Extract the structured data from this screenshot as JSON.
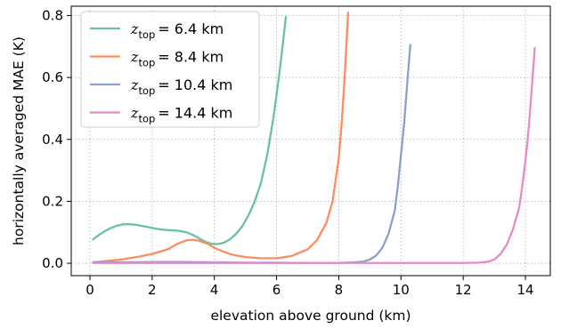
{
  "chart_data": {
    "type": "line",
    "xlabel": "elevation above ground (km)",
    "ylabel": "horizontally averaged MAE (K)",
    "xlim": [
      -0.6,
      14.8
    ],
    "ylim": [
      -0.04,
      0.83
    ],
    "xticks": [
      0,
      2,
      4,
      6,
      8,
      10,
      12,
      14
    ],
    "yticks": [
      0.0,
      0.2,
      0.4,
      0.6,
      0.8
    ],
    "xtick_labels": [
      "0",
      "2",
      "4",
      "6",
      "8",
      "10",
      "12",
      "14"
    ],
    "ytick_labels": [
      "0.0",
      "0.2",
      "0.4",
      "0.6",
      "0.8"
    ],
    "grid": true,
    "legend_position": "upper-left",
    "series": [
      {
        "name": "z_top = 6.4 km",
        "legend_sub": "top",
        "legend_value": "= 6.4 km",
        "color": "#66c2a5",
        "x": [
          0.1,
          0.3,
          0.5,
          0.7,
          0.9,
          1.1,
          1.3,
          1.5,
          1.7,
          1.9,
          2.1,
          2.3,
          2.5,
          2.7,
          2.9,
          3.1,
          3.3,
          3.5,
          3.7,
          3.9,
          4.1,
          4.3,
          4.5,
          4.7,
          4.9,
          5.1,
          5.3,
          5.5,
          5.7,
          5.9,
          6.1,
          6.3
        ],
        "y": [
          0.077,
          0.092,
          0.105,
          0.115,
          0.122,
          0.126,
          0.126,
          0.124,
          0.12,
          0.116,
          0.112,
          0.109,
          0.107,
          0.106,
          0.104,
          0.1,
          0.092,
          0.081,
          0.07,
          0.063,
          0.062,
          0.066,
          0.077,
          0.095,
          0.12,
          0.155,
          0.2,
          0.26,
          0.35,
          0.47,
          0.62,
          0.795
        ]
      },
      {
        "name": "z_top = 8.4 km",
        "legend_sub": "top",
        "legend_value": "= 8.4 km",
        "color": "#fc8d62",
        "x": [
          0.1,
          0.5,
          1.0,
          1.5,
          2.0,
          2.5,
          2.8,
          3.1,
          3.3,
          3.5,
          3.8,
          4.0,
          4.3,
          4.6,
          5.0,
          5.5,
          6.0,
          6.5,
          7.0,
          7.3,
          7.6,
          7.8,
          8.0,
          8.1,
          8.2,
          8.3
        ],
        "y": [
          0.003,
          0.007,
          0.012,
          0.02,
          0.03,
          0.045,
          0.062,
          0.074,
          0.076,
          0.073,
          0.062,
          0.05,
          0.037,
          0.027,
          0.02,
          0.016,
          0.016,
          0.024,
          0.045,
          0.075,
          0.13,
          0.2,
          0.34,
          0.46,
          0.62,
          0.81
        ]
      },
      {
        "name": "z_top = 10.4 km",
        "legend_sub": "top",
        "legend_value": "= 10.4 km",
        "color": "#8da0cb",
        "x": [
          0.1,
          1.0,
          2.0,
          3.0,
          4.0,
          5.0,
          6.0,
          7.0,
          8.0,
          8.5,
          8.8,
          9.0,
          9.2,
          9.4,
          9.6,
          9.8,
          9.9,
          10.0,
          10.1,
          10.2,
          10.3
        ],
        "y": [
          0.003,
          0.003,
          0.004,
          0.004,
          0.003,
          0.002,
          0.002,
          0.001,
          0.001,
          0.003,
          0.006,
          0.012,
          0.025,
          0.05,
          0.095,
          0.17,
          0.25,
          0.35,
          0.45,
          0.58,
          0.705
        ]
      },
      {
        "name": "z_top = 14.4 km",
        "legend_sub": "top",
        "legend_value": "= 14.4 km",
        "color": "#e78ac3",
        "x": [
          0.1,
          1.0,
          2.0,
          3.0,
          4.0,
          5.0,
          6.0,
          7.0,
          8.0,
          9.0,
          10.0,
          11.0,
          12.0,
          12.5,
          12.8,
          13.0,
          13.2,
          13.4,
          13.6,
          13.8,
          13.9,
          14.0,
          14.1,
          14.2,
          14.3
        ],
        "y": [
          0.001,
          0.001,
          0.001,
          0.001,
          0.001,
          0.001,
          0.001,
          0.001,
          0.001,
          0.001,
          0.001,
          0.001,
          0.001,
          0.002,
          0.005,
          0.012,
          0.03,
          0.06,
          0.11,
          0.18,
          0.25,
          0.33,
          0.43,
          0.56,
          0.695
        ]
      }
    ]
  }
}
